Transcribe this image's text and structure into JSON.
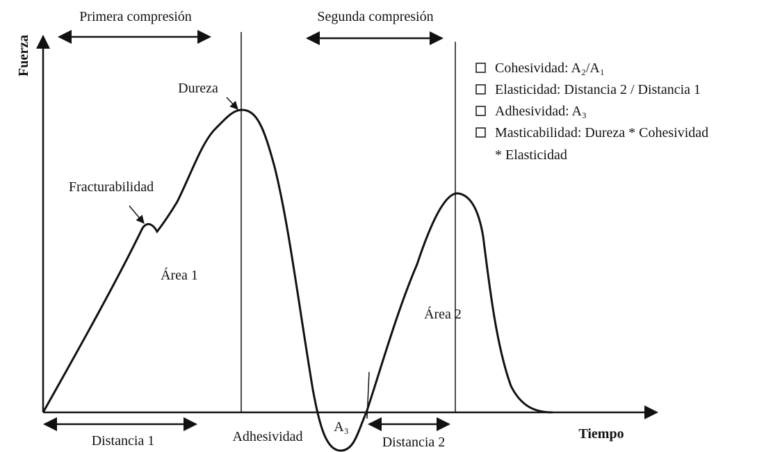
{
  "axes": {
    "y_label": "Fuerza",
    "x_label": "Tiempo"
  },
  "phases": {
    "first": "Primera compresión",
    "second": "Segunda compresión"
  },
  "annotations": {
    "hardness": "Dureza",
    "fracturability": "Fracturabilidad",
    "area1": "Área 1",
    "area2": "Área 2",
    "a3": "A₃",
    "adhesiveness": "Adhesividad",
    "distance1": "Distancia 1",
    "distance2": "Distancia 2"
  },
  "legend": {
    "items": [
      "Cohesividad: A₂/A₁",
      "Elasticidad: Distancia 2 / Distancia 1",
      "Adhesividad: A₃",
      "Masticabilidad: Dureza * Cohesividad",
      "* Elasticidad"
    ]
  }
}
